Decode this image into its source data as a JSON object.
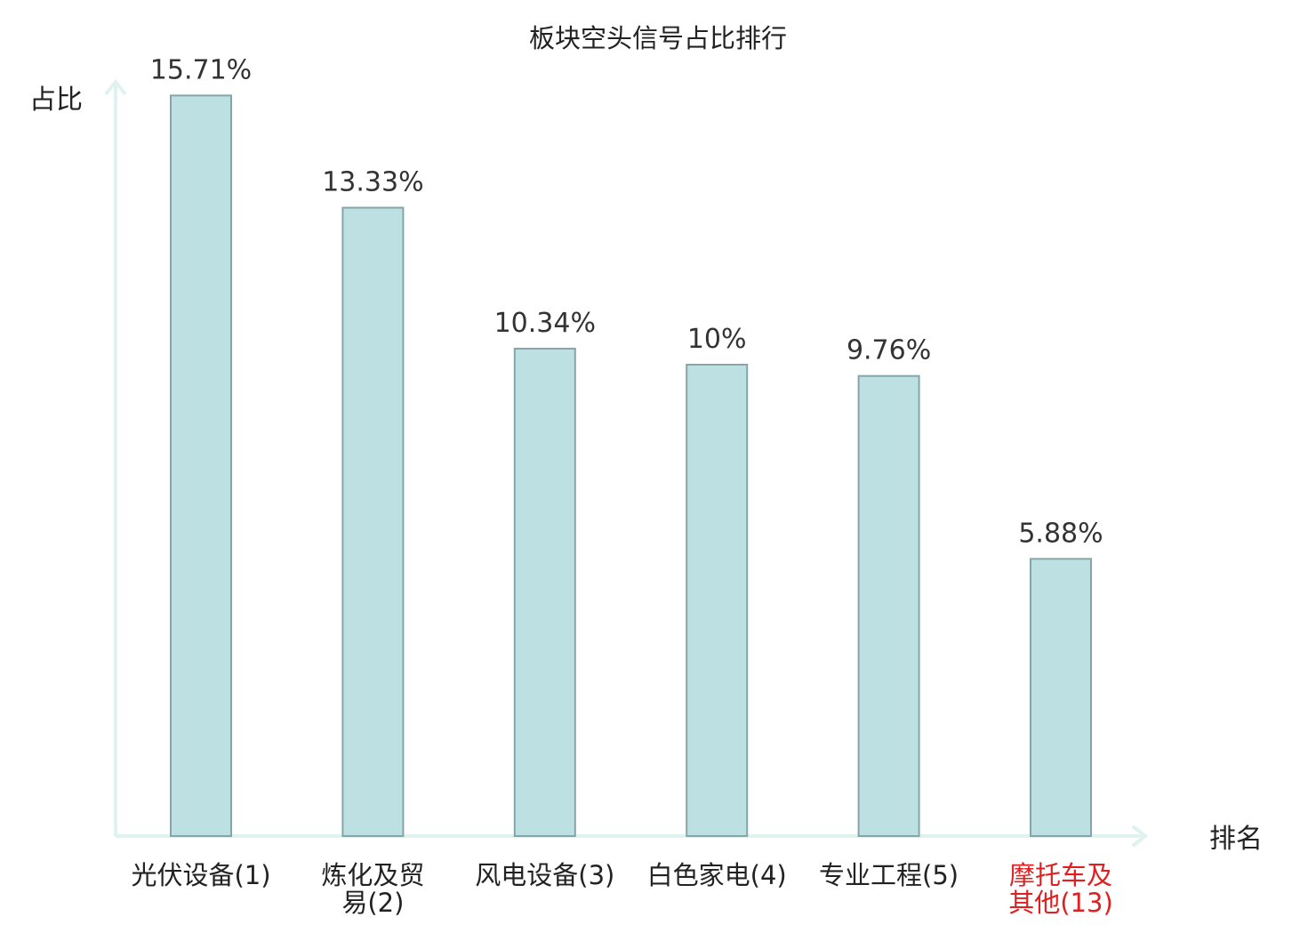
{
  "chart_data": {
    "type": "bar",
    "title": "板块空头信号占比排行",
    "ylabel": "占比",
    "xlabel": "排名",
    "ylim": [
      0,
      16
    ],
    "grid": false,
    "categories": [
      [
        "光伏设备(1)"
      ],
      [
        "炼化及贸",
        "易(2)"
      ],
      [
        "风电设备(3)"
      ],
      [
        "白色家电(4)"
      ],
      [
        "专业工程(5)"
      ],
      [
        "摩托车及",
        "其他(13)"
      ]
    ],
    "values": [
      15.71,
      13.33,
      10.34,
      10,
      9.76,
      5.88
    ],
    "value_labels": [
      "15.71%",
      "13.33%",
      "10.34%",
      "10%",
      "9.76%",
      "5.88%"
    ],
    "highlight_index": 5,
    "colors": {
      "bar_fill": "#bde0e2",
      "bar_stroke": "#86a5a8",
      "axis": "#dff2ef",
      "label": "#222222",
      "highlight": "#e02020"
    }
  }
}
